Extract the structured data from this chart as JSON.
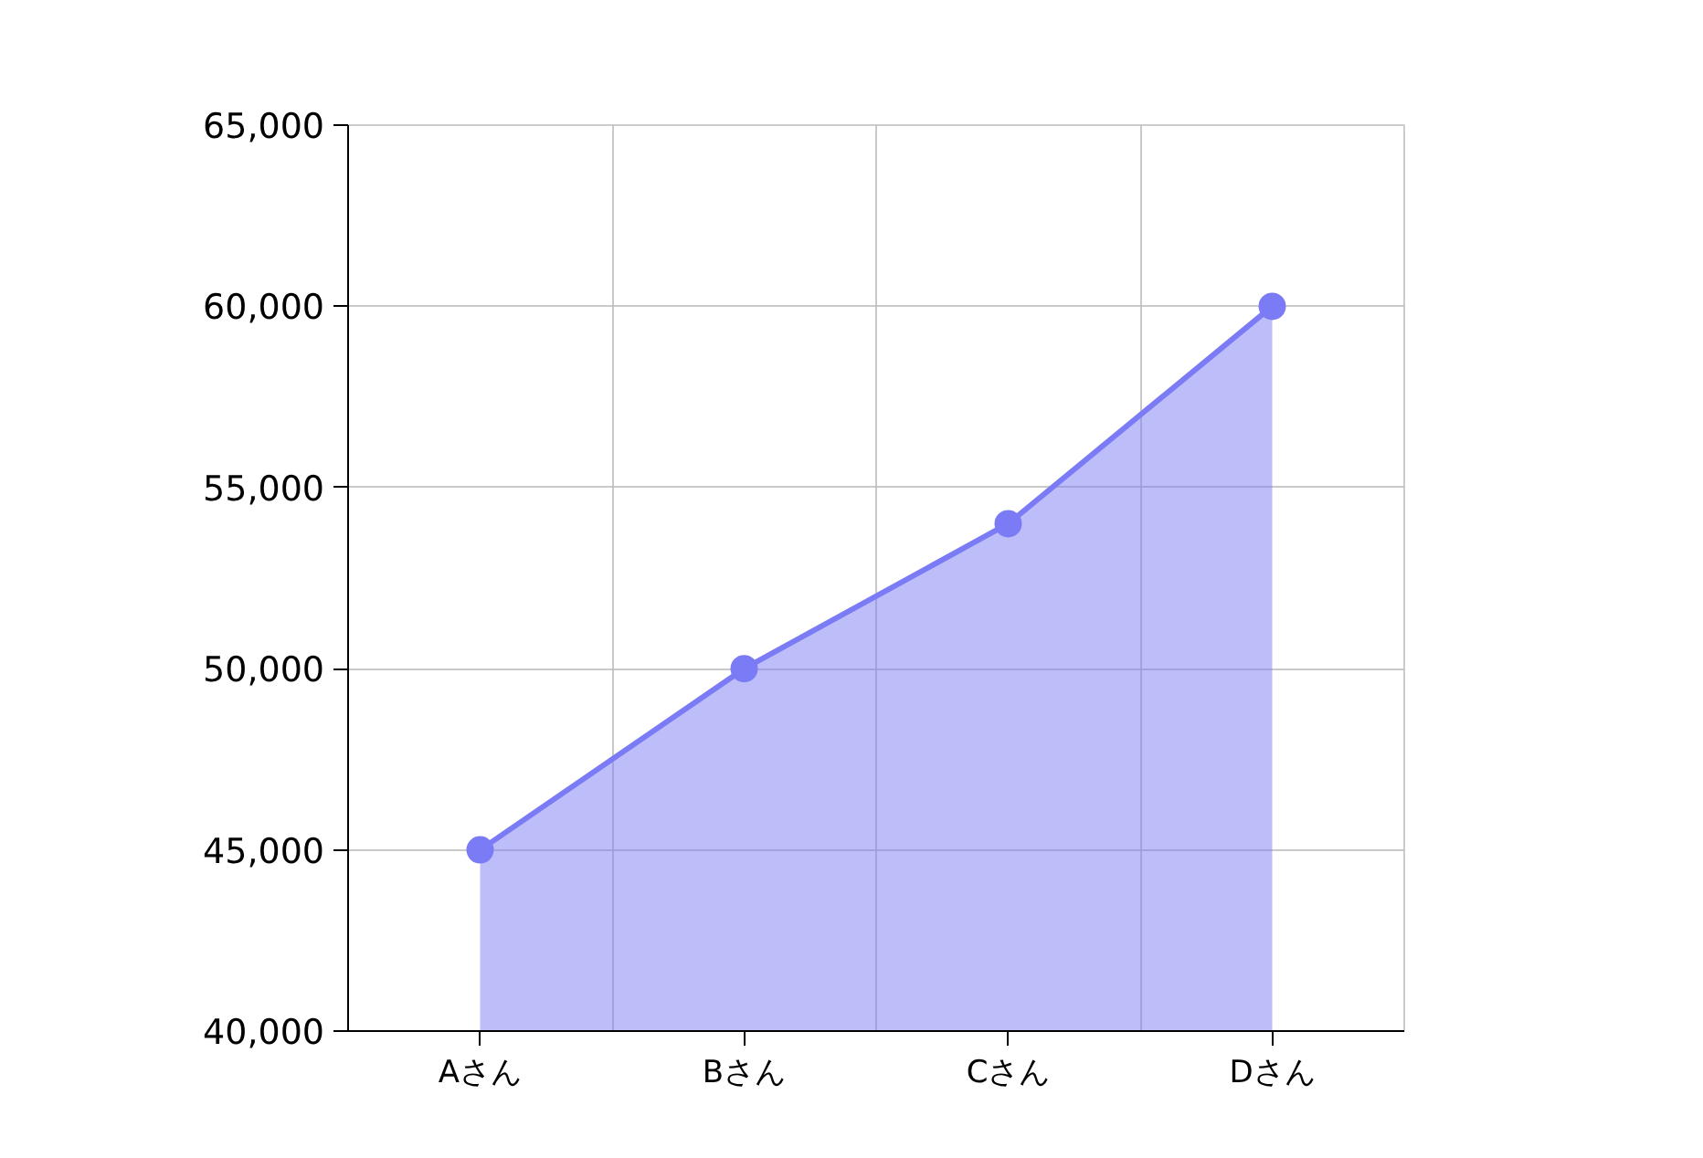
{
  "chart_data": {
    "type": "area",
    "categories": [
      "Aさん",
      "Bさん",
      "Cさん",
      "Dさん"
    ],
    "series": [
      {
        "color": "#7b7bf5",
        "values": [
          45000,
          50000,
          54000,
          60000
        ]
      }
    ],
    "ylim": [
      40000,
      65000
    ],
    "yticks": [
      {
        "value": 40000,
        "label": "40,000"
      },
      {
        "value": 45000,
        "label": "45,000"
      },
      {
        "value": 50000,
        "label": "50,000"
      },
      {
        "value": 55000,
        "label": "55,000"
      },
      {
        "value": 60000,
        "label": "60,000"
      },
      {
        "value": 65000,
        "label": "65,000"
      }
    ],
    "grid": true,
    "marker": "circle"
  }
}
